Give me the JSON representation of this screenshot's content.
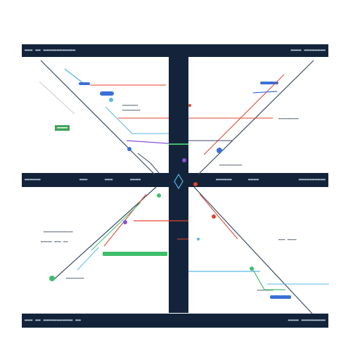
{
  "colors": {
    "frame": "#13243a",
    "panel": "#ffffff",
    "red": "#e0432e",
    "green": "#3fbf6b",
    "blue": "#3b6fd8",
    "cyan": "#5ab6e6",
    "violet": "#8a4fd8",
    "slate": "#3a4a66"
  },
  "top_bar": {
    "left_label": "▬▬▬ ▬▬ ▬▬▬▬▬▬▬▬▬▬▬▬",
    "right_label": "▬▬▬▬ ▬▬▬▬▬▬▬▬"
  },
  "middle_bar": {
    "labels": [
      "▬▬▬▬▬▬",
      "▬▬▬",
      "▬▬▬",
      "▬▬▬▬",
      "▬▬▬▬▬▬",
      "▬▬▬▬",
      "▬▬▬▬▬▬▬▬▬▬"
    ]
  },
  "bottom_bar": {
    "left_label": "▬▬▬ ▬▬ ▬▬▬▬▬▬▬▬▬▬▬ ▬▬",
    "right_label": "▬▬▬▬ ▬▬▬▬▬▬▬▬▬"
  },
  "panel_labels": {
    "tl_1": "▬▬▬▬▬▬▬",
    "tl_2": "▬▬▬▬▬▬▬▬",
    "tl_tag": "▬▬▬▬▬",
    "tr_1": "▬▬▬▬▬▬▬▬▬",
    "tr_2": "▬▬▬▬▬▬▬▬▬▬",
    "bl_1": "▬▬▬▬▬▬▬▬▬▬▬▬▬",
    "bl_2": "▬▬▬▬▬ ▬▬▬ ▬▬",
    "bl_3": "▬▬▬▬▬▬▬▬",
    "br_1": "▬▬▬ ▬▬▬▬",
    "br_2": "▬▬▬▬▬▬▬"
  },
  "center_icon": "diamond-icon"
}
